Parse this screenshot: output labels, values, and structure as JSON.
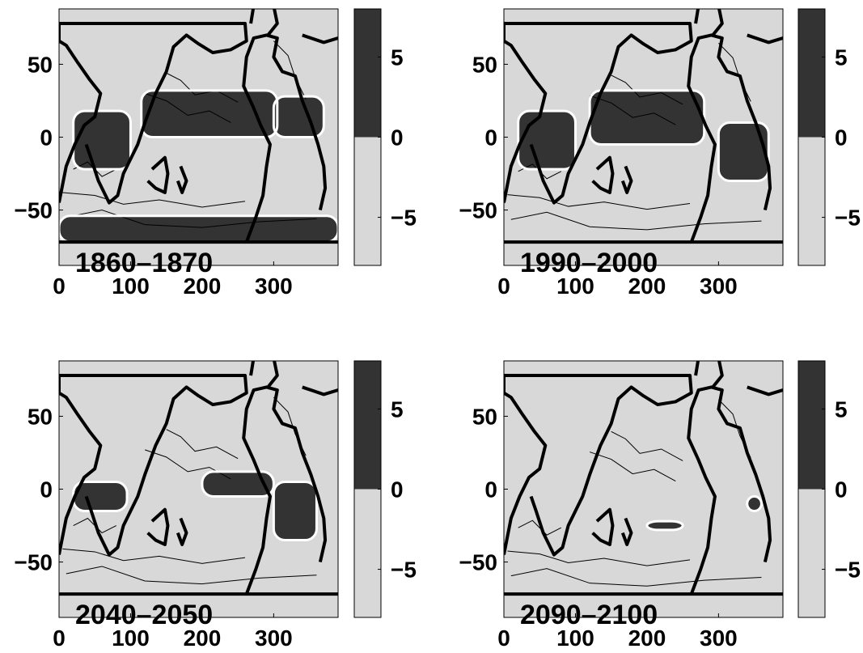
{
  "colors": {
    "positive": "#333333",
    "negative": "#d8d8d8",
    "coast": "#000000",
    "zero_contour": "#ffffff",
    "contour": "#000000"
  },
  "chart_data": [
    {
      "type": "heatmap",
      "title": "1860–1870",
      "x_ticks": [
        "0",
        "100",
        "200",
        "300"
      ],
      "y_ticks": [
        "50",
        "0",
        "−50"
      ],
      "xlim": [
        0,
        390
      ],
      "ylim": [
        -88,
        88
      ],
      "colorbar": {
        "ticks": [
          "5",
          "0",
          "−5"
        ],
        "range": [
          -8,
          8
        ],
        "levels": [
          -8,
          0,
          8
        ]
      },
      "positive_bands": [
        {
          "lon0": 0,
          "lon1": 390,
          "lat0": -72,
          "lat1": -54
        },
        {
          "lon0": 115,
          "lon1": 305,
          "lat0": 0,
          "lat1": 32
        },
        {
          "lon0": 20,
          "lon1": 100,
          "lat0": -22,
          "lat1": 18
        },
        {
          "lon0": 300,
          "lon1": 370,
          "lat0": 0,
          "lat1": 28
        }
      ]
    },
    {
      "type": "heatmap",
      "title": "1990–2000",
      "x_ticks": [
        "0",
        "100",
        "200",
        "300"
      ],
      "y_ticks": [
        "50",
        "0",
        "−50"
      ],
      "xlim": [
        0,
        390
      ],
      "ylim": [
        -88,
        88
      ],
      "colorbar": {
        "ticks": [
          "5",
          "0",
          "−5"
        ],
        "range": [
          -8,
          8
        ],
        "levels": [
          -8,
          0,
          8
        ]
      },
      "positive_bands": [
        {
          "lon0": 120,
          "lon1": 280,
          "lat0": -5,
          "lat1": 32
        },
        {
          "lon0": 20,
          "lon1": 100,
          "lat0": -22,
          "lat1": 18
        },
        {
          "lon0": 300,
          "lon1": 370,
          "lat0": -30,
          "lat1": 10
        }
      ]
    },
    {
      "type": "heatmap",
      "title": "2040–2050",
      "x_ticks": [
        "0",
        "100",
        "200",
        "300"
      ],
      "y_ticks": [
        "50",
        "0",
        "−50"
      ],
      "xlim": [
        0,
        390
      ],
      "ylim": [
        -88,
        88
      ],
      "colorbar": {
        "ticks": [
          "5",
          "0",
          "−5"
        ],
        "range": [
          -8,
          8
        ],
        "levels": [
          -8,
          0,
          8
        ]
      },
      "positive_bands": [
        {
          "lon0": 200,
          "lon1": 300,
          "lat0": -5,
          "lat1": 12
        },
        {
          "lon0": 20,
          "lon1": 95,
          "lat0": -15,
          "lat1": 5
        },
        {
          "lon0": 300,
          "lon1": 360,
          "lat0": -35,
          "lat1": 5
        }
      ]
    },
    {
      "type": "heatmap",
      "title": "2090–2100",
      "x_ticks": [
        "0",
        "100",
        "200",
        "300"
      ],
      "y_ticks": [
        "50",
        "0",
        "−50"
      ],
      "xlim": [
        0,
        390
      ],
      "ylim": [
        -88,
        88
      ],
      "colorbar": {
        "ticks": [
          "5",
          "0",
          "−5"
        ],
        "range": [
          -8,
          8
        ],
        "levels": [
          -8,
          0,
          8
        ]
      },
      "positive_bands": [
        {
          "lon0": 200,
          "lon1": 250,
          "lat0": -28,
          "lat1": -22
        },
        {
          "lon0": 340,
          "lon1": 360,
          "lat0": -15,
          "lat1": -5
        }
      ]
    }
  ]
}
